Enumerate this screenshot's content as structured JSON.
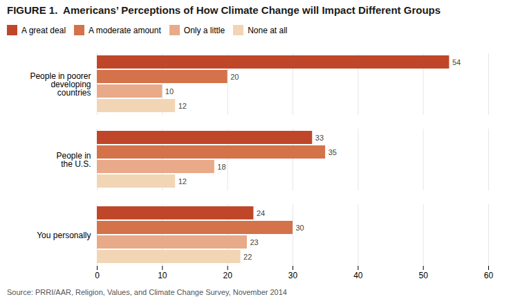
{
  "chart_data": {
    "type": "bar",
    "orientation": "horizontal",
    "title": "FIGURE 1.  Americans’ Perceptions of How Climate Change will Impact Different Groups",
    "source": "Source: PRRI/AAR, Religion, Values, and Climate Change Survey, November 2014",
    "categories": [
      "People in poorer\ndeveloping\ncountries",
      "People in\nthe U.S.",
      "You personally"
    ],
    "series": [
      {
        "name": "A great deal",
        "color": "#c0462a",
        "values": [
          54,
          33,
          24
        ]
      },
      {
        "name": "A moderate amount",
        "color": "#d4724a",
        "values": [
          20,
          35,
          30
        ]
      },
      {
        "name": "Only a little",
        "color": "#e8aa88",
        "values": [
          10,
          18,
          23
        ]
      },
      {
        "name": "None at all",
        "color": "#f2d5b5",
        "values": [
          12,
          12,
          22
        ]
      }
    ],
    "xlim": [
      0,
      60
    ],
    "xticks": [
      0,
      10,
      20,
      30,
      40,
      50,
      60
    ],
    "grid": true,
    "legend": "top",
    "data_labels": true
  }
}
